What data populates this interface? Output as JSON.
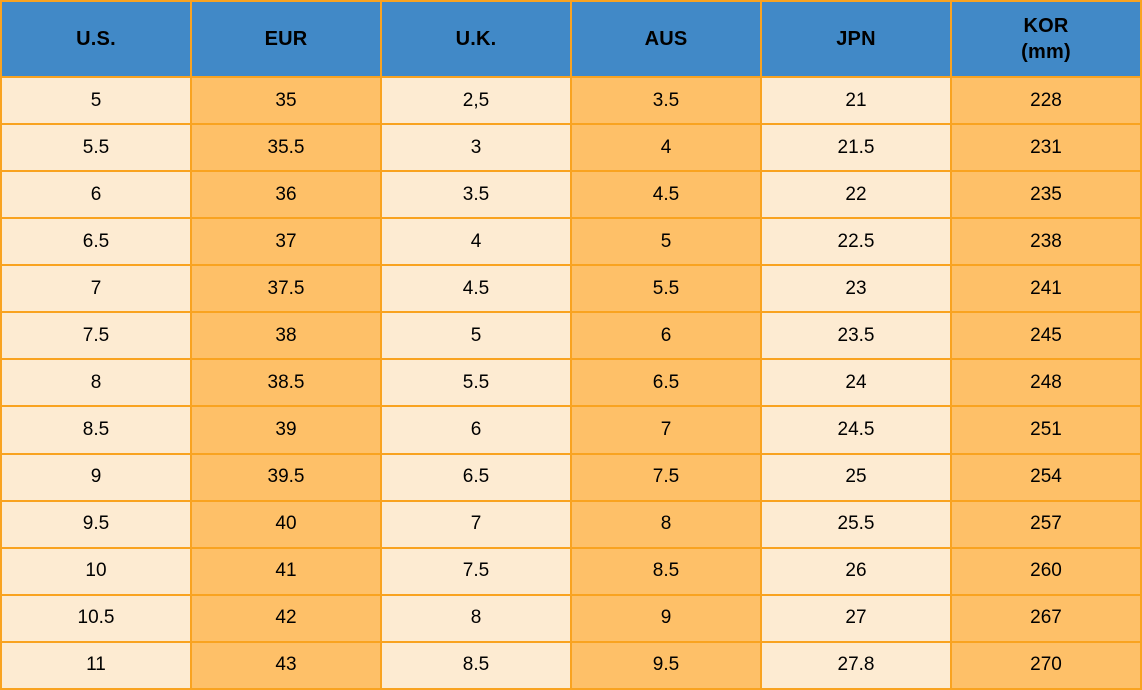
{
  "table": {
    "columns": [
      {
        "key": "us",
        "label": "U.S.",
        "sublabel": "",
        "shade": "light"
      },
      {
        "key": "eur",
        "label": "EUR",
        "sublabel": "",
        "shade": "dark"
      },
      {
        "key": "uk",
        "label": "U.K.",
        "sublabel": "",
        "shade": "light"
      },
      {
        "key": "aus",
        "label": "AUS",
        "sublabel": "",
        "shade": "dark"
      },
      {
        "key": "jpn",
        "label": "JPN",
        "sublabel": "",
        "shade": "light"
      },
      {
        "key": "kor",
        "label": "KOR",
        "sublabel": "(mm)",
        "shade": "dark"
      }
    ],
    "rows": [
      [
        "5",
        "35",
        "2,5",
        "3.5",
        "21",
        "228"
      ],
      [
        "5.5",
        "35.5",
        "3",
        "4",
        "21.5",
        "231"
      ],
      [
        "6",
        "36",
        "3.5",
        "4.5",
        "22",
        "235"
      ],
      [
        "6.5",
        "37",
        "4",
        "5",
        "22.5",
        "238"
      ],
      [
        "7",
        "37.5",
        "4.5",
        "5.5",
        "23",
        "241"
      ],
      [
        "7.5",
        "38",
        "5",
        "6",
        "23.5",
        "245"
      ],
      [
        "8",
        "38.5",
        "5.5",
        "6.5",
        "24",
        "248"
      ],
      [
        "8.5",
        "39",
        "6",
        "7",
        "24.5",
        "251"
      ],
      [
        "9",
        "39.5",
        "6.5",
        "7.5",
        "25",
        "254"
      ],
      [
        "9.5",
        "40",
        "7",
        "8",
        "25.5",
        "257"
      ],
      [
        "10",
        "41",
        "7.5",
        "8.5",
        "26",
        "260"
      ],
      [
        "10.5",
        "42",
        "8",
        "9",
        "27",
        "267"
      ],
      [
        "11",
        "43",
        "8.5",
        "9.5",
        "27.8",
        "270"
      ]
    ],
    "colors": {
      "header_bg": "#4189C7",
      "border": "#F9A320",
      "cell_light": "#FDEBD2",
      "cell_dark": "#FEC068",
      "text": "#000000"
    }
  },
  "chart_data": {
    "type": "table",
    "categories": [
      "U.S.",
      "EUR",
      "U.K.",
      "AUS",
      "JPN",
      "KOR (mm)"
    ],
    "series": [
      {
        "name": "U.S.",
        "values": [
          5,
          5.5,
          6,
          6.5,
          7,
          7.5,
          8,
          8.5,
          9,
          9.5,
          10,
          10.5,
          11
        ]
      },
      {
        "name": "EUR",
        "values": [
          35,
          35.5,
          36,
          37,
          37.5,
          38,
          38.5,
          39,
          39.5,
          40,
          41,
          42,
          43
        ]
      },
      {
        "name": "U.K.",
        "values": [
          2.5,
          3,
          3.5,
          4,
          4.5,
          5,
          5.5,
          6,
          6.5,
          7,
          7.5,
          8,
          8.5
        ]
      },
      {
        "name": "AUS",
        "values": [
          3.5,
          4,
          4.5,
          5,
          5.5,
          6,
          6.5,
          7,
          7.5,
          8,
          8.5,
          9,
          9.5
        ]
      },
      {
        "name": "JPN",
        "values": [
          21,
          21.5,
          22,
          22.5,
          23,
          23.5,
          24,
          24.5,
          25,
          25.5,
          26,
          27,
          27.8
        ]
      },
      {
        "name": "KOR (mm)",
        "values": [
          228,
          231,
          235,
          238,
          241,
          245,
          248,
          251,
          254,
          257,
          260,
          267,
          270
        ]
      }
    ],
    "title": "",
    "xlabel": "",
    "ylabel": "",
    "legend": "none",
    "grid": true
  }
}
